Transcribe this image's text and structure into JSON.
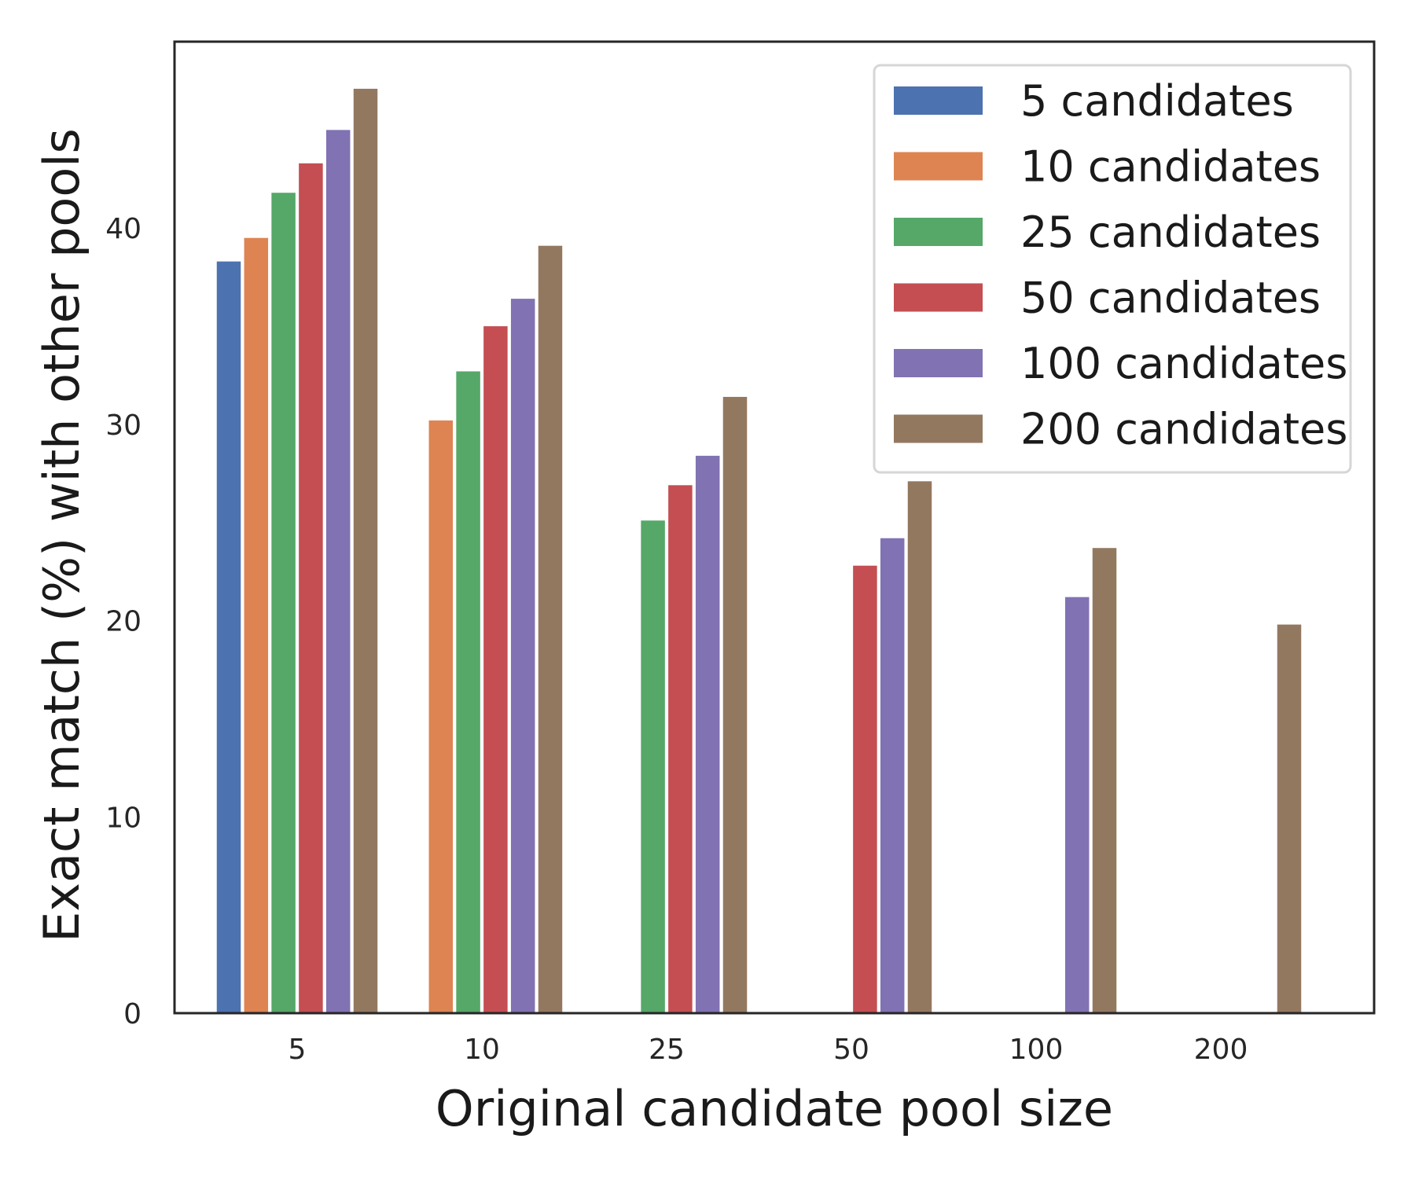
{
  "chart_data": {
    "type": "bar",
    "xlabel": "Original candidate pool size",
    "ylabel": "Exact match (%) with other pools",
    "categories": [
      "5",
      "10",
      "25",
      "50",
      "100",
      "200"
    ],
    "ylim": [
      0,
      49.5
    ],
    "yticks": [
      0,
      10,
      20,
      30,
      40
    ],
    "grid": false,
    "legend_position": "top-right",
    "series": [
      {
        "name": "5 candidates",
        "color": "#4c72b0",
        "values": [
          38.3,
          null,
          null,
          null,
          null,
          null
        ]
      },
      {
        "name": "10 candidates",
        "color": "#dd8452",
        "values": [
          39.5,
          30.2,
          null,
          null,
          null,
          null
        ]
      },
      {
        "name": "25 candidates",
        "color": "#55a868",
        "values": [
          41.8,
          32.7,
          25.1,
          null,
          null,
          null
        ]
      },
      {
        "name": "50 candidates",
        "color": "#c44e52",
        "values": [
          43.3,
          35.0,
          26.9,
          22.8,
          null,
          null
        ]
      },
      {
        "name": "100 candidates",
        "color": "#8172b3",
        "values": [
          45.0,
          36.4,
          28.4,
          24.2,
          21.2,
          null
        ]
      },
      {
        "name": "200 candidates",
        "color": "#937860",
        "values": [
          47.1,
          39.1,
          31.4,
          27.1,
          23.7,
          19.8
        ]
      }
    ]
  }
}
